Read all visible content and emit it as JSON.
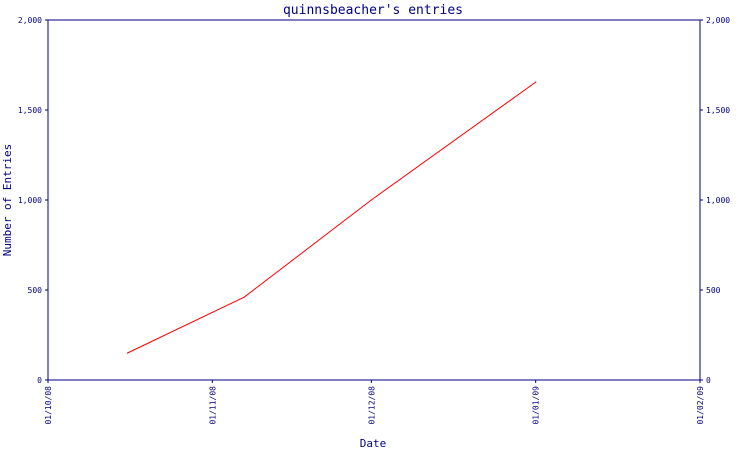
{
  "chart_data": {
    "type": "line",
    "title": "quinnsbeacher's entries",
    "xlabel": "Date",
    "ylabel": "Number of Entries",
    "x_ticks": [
      "01/10/08",
      "01/11/08",
      "01/12/08",
      "01/01/09",
      "01/02/09"
    ],
    "x_tick_dates": [
      "2008-10-01",
      "2008-11-01",
      "2008-12-01",
      "2009-01-01",
      "2009-02-01"
    ],
    "y_ticks": [
      "0",
      "500",
      "1,000",
      "1,500",
      "2,000"
    ],
    "y_tick_values": [
      0,
      500,
      1000,
      1500,
      2000
    ],
    "ylim": [
      0,
      2000
    ],
    "xlim": [
      "2008-10-01",
      "2009-02-01"
    ],
    "grid": false,
    "series": [
      {
        "color": "#ff0000",
        "x": [
          "2008-10-16",
          "2008-11-07",
          "2008-12-01",
          "2009-01-01"
        ],
        "y": [
          150,
          460,
          1000,
          1655
        ]
      }
    ],
    "colors": {
      "axis": "#000080",
      "line": "#ff0000"
    }
  }
}
